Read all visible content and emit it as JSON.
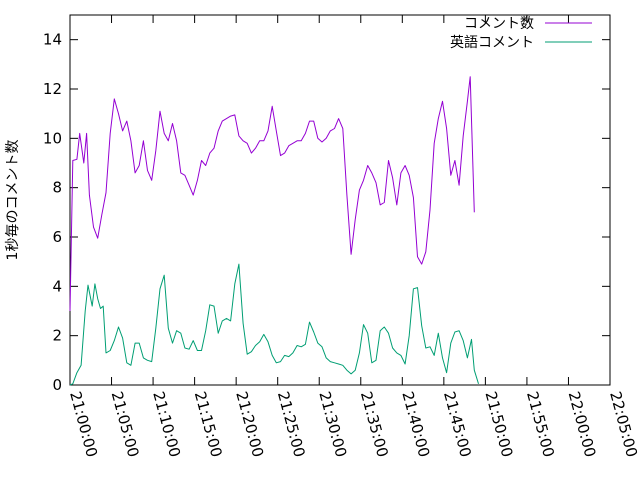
{
  "chart_data": {
    "type": "line",
    "ylabel": "1秒毎のコメント数",
    "xlabel": "",
    "title": "",
    "xlim": [
      "21:00:00",
      "22:05:00"
    ],
    "ylim": [
      0,
      15
    ],
    "x_ticks": [
      "21:00:00",
      "21:05:00",
      "21:10:00",
      "21:15:00",
      "21:20:00",
      "21:25:00",
      "21:30:00",
      "21:35:00",
      "21:40:00",
      "21:45:00",
      "21:50:00",
      "21:55:00",
      "22:00:00",
      "22:05:00"
    ],
    "y_ticks": [
      "0",
      "2",
      "4",
      "6",
      "8",
      "10",
      "12",
      "14"
    ],
    "legend_position": "top-right",
    "grid": false,
    "series": [
      {
        "name": "コメント数",
        "color": "#9400d3",
        "points": [
          [
            "21:00:00",
            3.0
          ],
          [
            "21:00:20",
            9.1
          ],
          [
            "21:00:50",
            9.15
          ],
          [
            "21:01:10",
            10.2
          ],
          [
            "21:01:40",
            9.0
          ],
          [
            "21:02:00",
            10.2
          ],
          [
            "21:02:20",
            7.7
          ],
          [
            "21:02:50",
            6.4
          ],
          [
            "21:03:20",
            5.95
          ],
          [
            "21:03:50",
            6.9
          ],
          [
            "21:04:20",
            7.8
          ],
          [
            "21:04:50",
            10.2
          ],
          [
            "21:05:20",
            11.6
          ],
          [
            "21:05:50",
            11.0
          ],
          [
            "21:06:20",
            10.3
          ],
          [
            "21:06:50",
            10.7
          ],
          [
            "21:07:20",
            9.9
          ],
          [
            "21:07:50",
            8.6
          ],
          [
            "21:08:20",
            8.9
          ],
          [
            "21:08:50",
            9.9
          ],
          [
            "21:09:20",
            8.7
          ],
          [
            "21:09:50",
            8.3
          ],
          [
            "21:10:20",
            9.5
          ],
          [
            "21:10:50",
            11.1
          ],
          [
            "21:11:20",
            10.2
          ],
          [
            "21:11:50",
            9.9
          ],
          [
            "21:12:20",
            10.6
          ],
          [
            "21:12:50",
            9.9
          ],
          [
            "21:13:20",
            8.6
          ],
          [
            "21:13:50",
            8.5
          ],
          [
            "21:14:20",
            8.1
          ],
          [
            "21:14:50",
            7.7
          ],
          [
            "21:15:20",
            8.3
          ],
          [
            "21:15:50",
            9.1
          ],
          [
            "21:16:20",
            8.9
          ],
          [
            "21:16:50",
            9.4
          ],
          [
            "21:17:20",
            9.6
          ],
          [
            "21:17:50",
            10.3
          ],
          [
            "21:18:20",
            10.7
          ],
          [
            "21:18:50",
            10.8
          ],
          [
            "21:19:20",
            10.9
          ],
          [
            "21:19:50",
            10.95
          ],
          [
            "21:20:20",
            10.1
          ],
          [
            "21:20:50",
            9.9
          ],
          [
            "21:21:20",
            9.8
          ],
          [
            "21:21:50",
            9.4
          ],
          [
            "21:22:20",
            9.6
          ],
          [
            "21:22:50",
            9.9
          ],
          [
            "21:23:20",
            9.9
          ],
          [
            "21:23:50",
            10.3
          ],
          [
            "21:24:20",
            11.3
          ],
          [
            "21:24:50",
            10.3
          ],
          [
            "21:25:20",
            9.3
          ],
          [
            "21:25:50",
            9.4
          ],
          [
            "21:26:20",
            9.7
          ],
          [
            "21:26:50",
            9.8
          ],
          [
            "21:27:20",
            9.9
          ],
          [
            "21:27:50",
            9.9
          ],
          [
            "21:28:20",
            10.2
          ],
          [
            "21:28:50",
            10.7
          ],
          [
            "21:29:20",
            10.7
          ],
          [
            "21:29:50",
            10.0
          ],
          [
            "21:30:20",
            9.85
          ],
          [
            "21:30:50",
            10.0
          ],
          [
            "21:31:20",
            10.3
          ],
          [
            "21:31:50",
            10.4
          ],
          [
            "21:32:20",
            10.8
          ],
          [
            "21:32:50",
            10.4
          ],
          [
            "21:33:20",
            7.7
          ],
          [
            "21:33:50",
            5.3
          ],
          [
            "21:34:20",
            6.7
          ],
          [
            "21:34:50",
            7.9
          ],
          [
            "21:35:20",
            8.3
          ],
          [
            "21:35:50",
            8.9
          ],
          [
            "21:36:20",
            8.6
          ],
          [
            "21:36:50",
            8.2
          ],
          [
            "21:37:20",
            7.3
          ],
          [
            "21:37:50",
            7.4
          ],
          [
            "21:38:20",
            9.1
          ],
          [
            "21:38:50",
            8.4
          ],
          [
            "21:39:20",
            7.3
          ],
          [
            "21:39:50",
            8.6
          ],
          [
            "21:40:20",
            8.9
          ],
          [
            "21:40:50",
            8.5
          ],
          [
            "21:41:20",
            7.6
          ],
          [
            "21:41:50",
            5.2
          ],
          [
            "21:42:20",
            4.9
          ],
          [
            "21:42:50",
            5.4
          ],
          [
            "21:43:20",
            7.1
          ],
          [
            "21:43:50",
            9.8
          ],
          [
            "21:44:20",
            10.8
          ],
          [
            "21:44:50",
            11.5
          ],
          [
            "21:45:20",
            10.4
          ],
          [
            "21:45:50",
            8.5
          ],
          [
            "21:46:20",
            9.1
          ],
          [
            "21:46:50",
            8.1
          ],
          [
            "21:47:20",
            10.1
          ],
          [
            "21:47:50",
            11.5
          ],
          [
            "21:48:10",
            12.5
          ],
          [
            "21:48:40",
            7.0
          ]
        ]
      },
      {
        "name": "英語コメント",
        "color": "#009e73",
        "points": [
          [
            "21:00:00",
            0.0
          ],
          [
            "21:00:20",
            0.05
          ],
          [
            "21:00:50",
            0.5
          ],
          [
            "21:01:20",
            0.8
          ],
          [
            "21:01:50",
            3.0
          ],
          [
            "21:02:10",
            4.05
          ],
          [
            "21:02:40",
            3.2
          ],
          [
            "21:03:00",
            4.1
          ],
          [
            "21:03:20",
            3.5
          ],
          [
            "21:03:40",
            3.1
          ],
          [
            "21:04:00",
            3.2
          ],
          [
            "21:04:20",
            1.3
          ],
          [
            "21:04:50",
            1.4
          ],
          [
            "21:05:20",
            1.8
          ],
          [
            "21:05:50",
            2.35
          ],
          [
            "21:06:20",
            1.9
          ],
          [
            "21:06:50",
            0.9
          ],
          [
            "21:07:20",
            0.8
          ],
          [
            "21:07:50",
            1.7
          ],
          [
            "21:08:20",
            1.7
          ],
          [
            "21:08:50",
            1.1
          ],
          [
            "21:09:20",
            1.0
          ],
          [
            "21:09:50",
            0.95
          ],
          [
            "21:10:20",
            2.3
          ],
          [
            "21:10:50",
            3.9
          ],
          [
            "21:11:20",
            4.45
          ],
          [
            "21:11:50",
            2.3
          ],
          [
            "21:12:20",
            1.7
          ],
          [
            "21:12:50",
            2.2
          ],
          [
            "21:13:20",
            2.1
          ],
          [
            "21:13:50",
            1.5
          ],
          [
            "21:14:20",
            1.45
          ],
          [
            "21:14:50",
            1.8
          ],
          [
            "21:15:20",
            1.4
          ],
          [
            "21:15:50",
            1.4
          ],
          [
            "21:16:20",
            2.2
          ],
          [
            "21:16:50",
            3.25
          ],
          [
            "21:17:20",
            3.2
          ],
          [
            "21:17:50",
            2.1
          ],
          [
            "21:18:20",
            2.6
          ],
          [
            "21:18:50",
            2.7
          ],
          [
            "21:19:20",
            2.6
          ],
          [
            "21:19:50",
            4.1
          ],
          [
            "21:20:20",
            4.9
          ],
          [
            "21:20:50",
            2.5
          ],
          [
            "21:21:20",
            1.25
          ],
          [
            "21:21:50",
            1.35
          ],
          [
            "21:22:20",
            1.6
          ],
          [
            "21:22:50",
            1.75
          ],
          [
            "21:23:20",
            2.05
          ],
          [
            "21:23:50",
            1.75
          ],
          [
            "21:24:20",
            1.2
          ],
          [
            "21:24:50",
            0.9
          ],
          [
            "21:25:20",
            0.95
          ],
          [
            "21:25:50",
            1.2
          ],
          [
            "21:26:20",
            1.15
          ],
          [
            "21:26:50",
            1.3
          ],
          [
            "21:27:20",
            1.6
          ],
          [
            "21:27:50",
            1.55
          ],
          [
            "21:28:20",
            1.65
          ],
          [
            "21:28:50",
            2.55
          ],
          [
            "21:29:20",
            2.15
          ],
          [
            "21:29:50",
            1.7
          ],
          [
            "21:30:20",
            1.55
          ],
          [
            "21:30:50",
            1.1
          ],
          [
            "21:31:20",
            0.95
          ],
          [
            "21:31:50",
            0.9
          ],
          [
            "21:32:20",
            0.85
          ],
          [
            "21:32:50",
            0.8
          ],
          [
            "21:33:20",
            0.6
          ],
          [
            "21:33:50",
            0.45
          ],
          [
            "21:34:20",
            0.6
          ],
          [
            "21:34:50",
            1.3
          ],
          [
            "21:35:20",
            2.45
          ],
          [
            "21:35:50",
            2.1
          ],
          [
            "21:36:20",
            0.9
          ],
          [
            "21:36:50",
            1.0
          ],
          [
            "21:37:20",
            2.2
          ],
          [
            "21:37:50",
            2.35
          ],
          [
            "21:38:20",
            2.1
          ],
          [
            "21:38:50",
            1.5
          ],
          [
            "21:39:20",
            1.3
          ],
          [
            "21:39:50",
            1.2
          ],
          [
            "21:40:20",
            0.85
          ],
          [
            "21:40:50",
            2.0
          ],
          [
            "21:41:20",
            3.9
          ],
          [
            "21:41:50",
            3.95
          ],
          [
            "21:42:20",
            2.4
          ],
          [
            "21:42:50",
            1.5
          ],
          [
            "21:43:20",
            1.55
          ],
          [
            "21:43:50",
            1.2
          ],
          [
            "21:44:20",
            2.1
          ],
          [
            "21:44:50",
            1.1
          ],
          [
            "21:45:20",
            0.5
          ],
          [
            "21:45:50",
            1.7
          ],
          [
            "21:46:20",
            2.15
          ],
          [
            "21:46:50",
            2.2
          ],
          [
            "21:47:20",
            1.8
          ],
          [
            "21:47:50",
            1.1
          ],
          [
            "21:48:20",
            1.85
          ],
          [
            "21:48:40",
            0.6
          ],
          [
            "21:49:10",
            0.05
          ]
        ]
      }
    ]
  }
}
